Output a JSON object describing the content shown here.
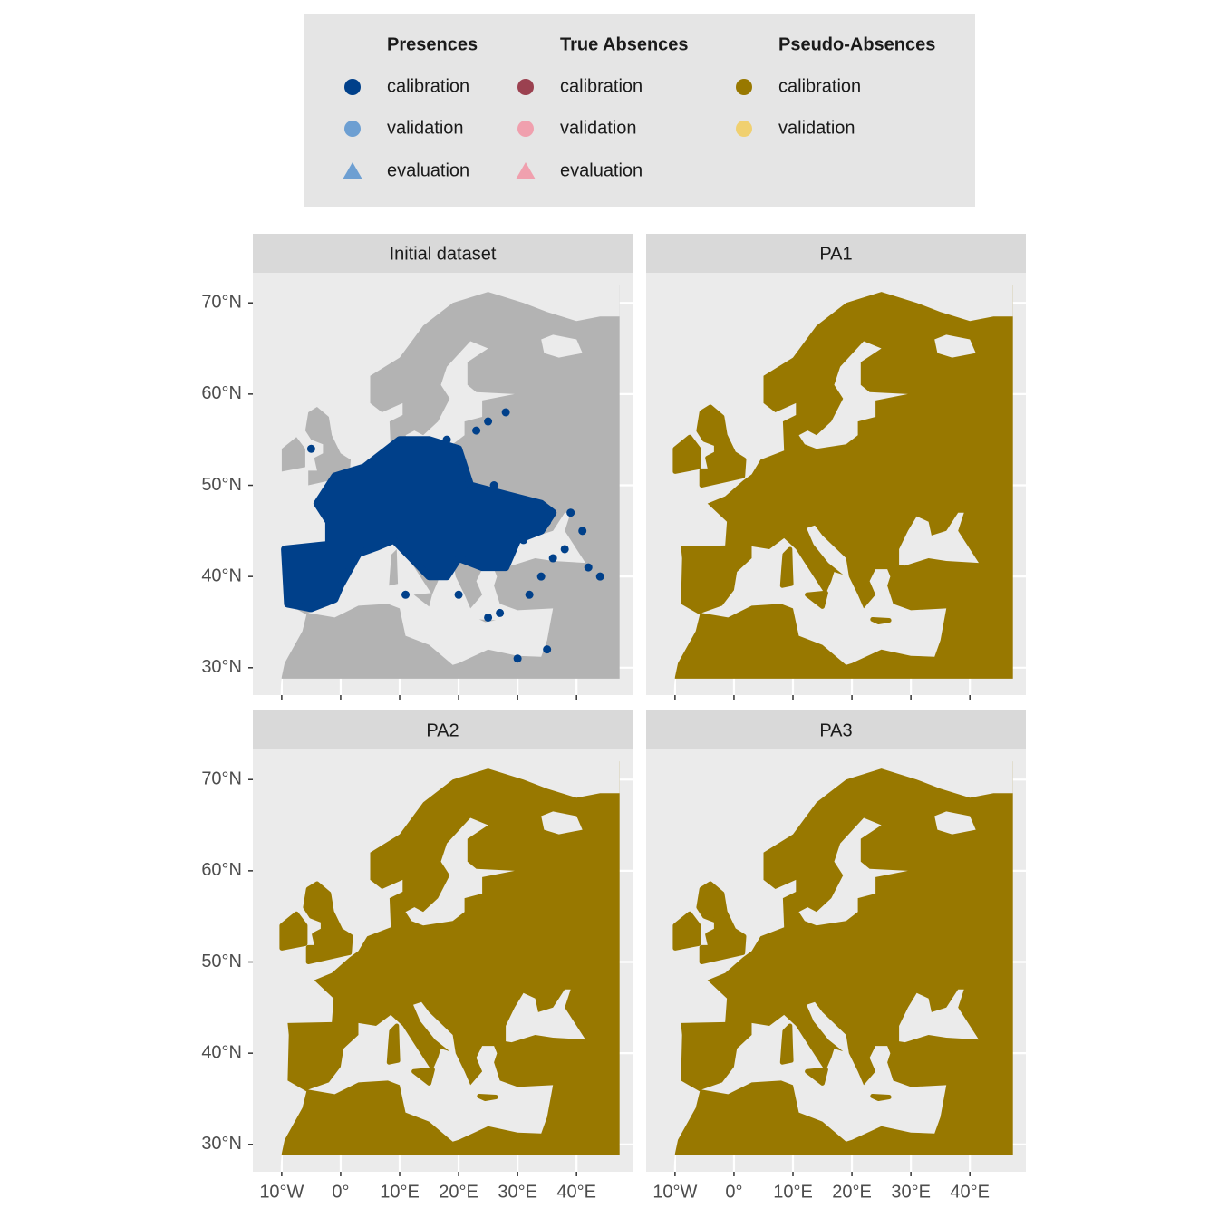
{
  "legend": {
    "groups": [
      {
        "title": "Presences",
        "items": [
          {
            "label": "calibration",
            "color": "#00408a",
            "shape": "circle"
          },
          {
            "label": "validation",
            "color": "#6d9fd2",
            "shape": "circle"
          },
          {
            "label": "evaluation",
            "color": "#6d9fd2",
            "shape": "triangle"
          }
        ]
      },
      {
        "title": "True Absences",
        "items": [
          {
            "label": "calibration",
            "color": "#9b4150",
            "shape": "circle"
          },
          {
            "label": "validation",
            "color": "#f0a0ae",
            "shape": "circle"
          },
          {
            "label": "evaluation",
            "color": "#f0a0ae",
            "shape": "triangle"
          }
        ]
      },
      {
        "title": "Pseudo-Absences",
        "items": [
          {
            "label": "calibration",
            "color": "#987800",
            "shape": "circle"
          },
          {
            "label": "validation",
            "color": "#f0d070",
            "shape": "circle"
          }
        ]
      }
    ]
  },
  "panels": [
    {
      "title": "Initial dataset"
    },
    {
      "title": "PA1"
    },
    {
      "title": "PA2"
    },
    {
      "title": "PA3"
    }
  ],
  "axes": {
    "xlim": [
      -14.9,
      49.5
    ],
    "ylim": [
      27.0,
      73.3
    ],
    "xticks": [
      {
        "value": -10,
        "label": "10°W"
      },
      {
        "value": 0,
        "label": "0°"
      },
      {
        "value": 10,
        "label": "10°E"
      },
      {
        "value": 20,
        "label": "20°E"
      },
      {
        "value": 30,
        "label": "30°E"
      },
      {
        "value": 40,
        "label": "40°E"
      }
    ],
    "yticks": [
      {
        "value": 30,
        "label": "30°N"
      },
      {
        "value": 40,
        "label": "40°N"
      },
      {
        "value": 50,
        "label": "50°N"
      },
      {
        "value": 60,
        "label": "60°N"
      },
      {
        "value": 70,
        "label": "70°N"
      }
    ]
  }
}
